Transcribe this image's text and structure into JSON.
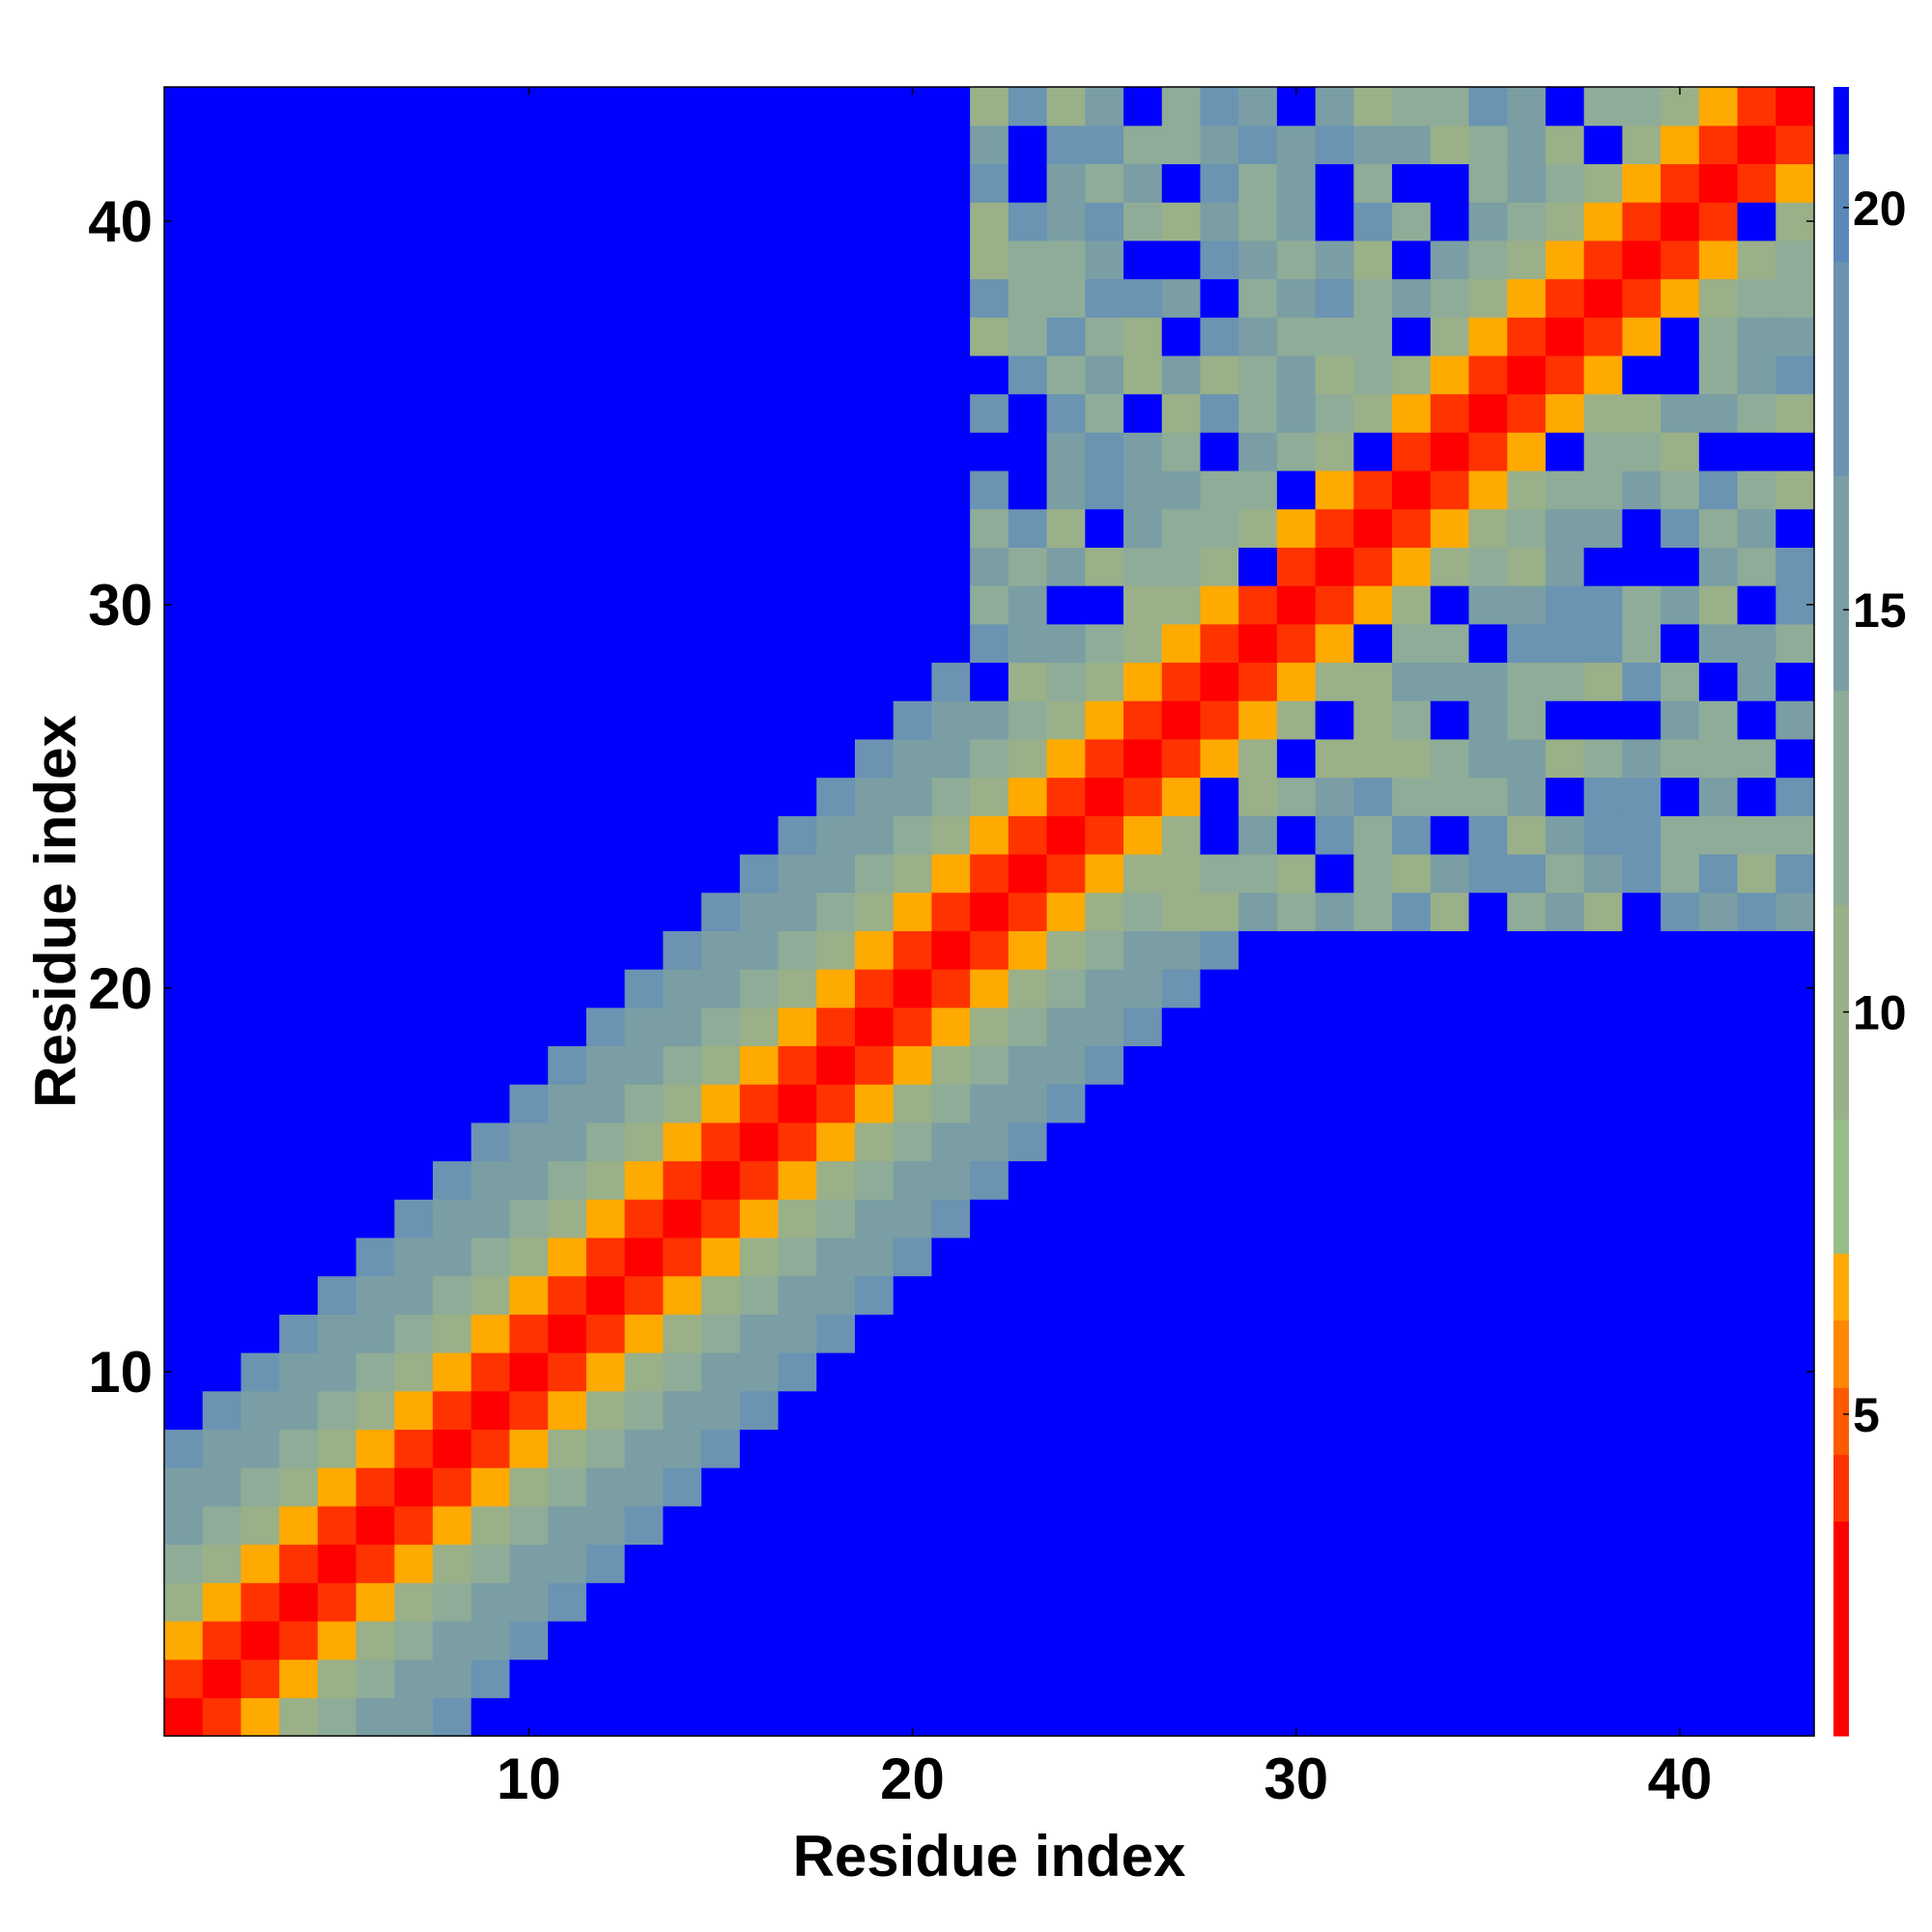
{
  "chart_data": {
    "type": "heatmap",
    "title": "",
    "xlabel": "Residue index",
    "ylabel": "Residue index",
    "n": 43,
    "xlim": [
      0.5,
      43.5
    ],
    "ylim": [
      0.5,
      43.5
    ],
    "x_ticks": [
      10,
      20,
      30,
      40
    ],
    "y_ticks": [
      10,
      20,
      30,
      40
    ],
    "colorbar": {
      "range": [
        1,
        21.5
      ],
      "ticks": [
        5,
        10,
        15,
        20
      ],
      "colors": [
        "#ff0000",
        "#ff3300",
        "#ff5a00",
        "#ff8800",
        "#ffaa00",
        "#98bc8a",
        "#9ab088",
        "#8eac98",
        "#7a9ea4",
        "#6a94b2",
        "#5a88ba",
        "#0000ff"
      ],
      "boundaries": [
        1,
        3.67,
        4.5,
        5.33,
        6.17,
        7,
        8.67,
        11.33,
        14,
        16.67,
        19.33,
        20.67,
        21.5
      ]
    },
    "grid": false,
    "legend": "none",
    "band_rule": "cell value grows with residue separation |i - j|: about 2.5 Å per residue of separation near the diagonal, capped at 21.5 (blue) beyond ~15 residues; residues 29-43 show irregular contacts"
  }
}
